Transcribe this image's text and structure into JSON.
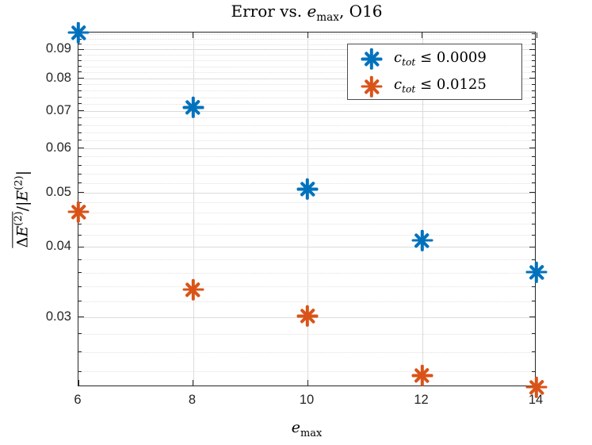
{
  "chart_data": {
    "type": "scatter",
    "title": "Error vs. e_max, O16",
    "xlabel": "e_max",
    "ylabel": "overline(DeltaE^(2)) / |E^(2)|",
    "xscale": "linear",
    "yscale": "log",
    "xlim": [
      6,
      14
    ],
    "ylim": [
      0.0225,
      0.0965
    ],
    "grid": true,
    "minor_grid": true,
    "legend_position": "northeast",
    "xticks": [
      6,
      8,
      10,
      12,
      14
    ],
    "yticks": [
      0.03,
      0.04,
      0.05,
      0.06,
      0.07,
      0.08,
      0.09
    ],
    "x_tick_labels": [
      "6",
      "8",
      "10",
      "12",
      "14"
    ],
    "y_tick_labels": [
      "0.03",
      "0.04",
      "0.05",
      "0.06",
      "0.07",
      "0.08",
      "0.09"
    ],
    "x": [
      6,
      8,
      10,
      12,
      14
    ],
    "series": [
      {
        "name": "c_tot <= 0.0009",
        "marker": "asterisk",
        "color": "#0072BD",
        "values": [
          0.0965,
          0.071,
          0.0507,
          0.0411,
          0.0361
        ]
      },
      {
        "name": "c_tot <= 0.0125",
        "marker": "asterisk",
        "color": "#D95319",
        "values": [
          0.0462,
          0.0336,
          0.0301,
          0.0236,
          0.0225
        ]
      }
    ]
  },
  "title_parts": {
    "prefix": "Error vs. ",
    "var": "e",
    "sub": "max",
    "suffix": ", O16"
  },
  "xlabel_parts": {
    "var": "e",
    "sub": "max"
  },
  "ylabel_parts": {
    "delta": "Δ",
    "E1": "E",
    "sup1": "(2)",
    "mid": "/|",
    "E2": "E",
    "sup2": "(2)",
    "end": "|"
  },
  "legend": {
    "rows": [
      {
        "var": "c",
        "sub": "tot",
        "rel": " ≤ ",
        "value": "0.0009",
        "color": "#0072BD"
      },
      {
        "var": "c",
        "sub": "tot",
        "rel": " ≤ ",
        "value": "0.0125",
        "color": "#D95319"
      }
    ]
  },
  "colors": {
    "blue": "#0072BD",
    "orange": "#D95319",
    "axis": "#262626",
    "grid": "#dbdbdb"
  }
}
